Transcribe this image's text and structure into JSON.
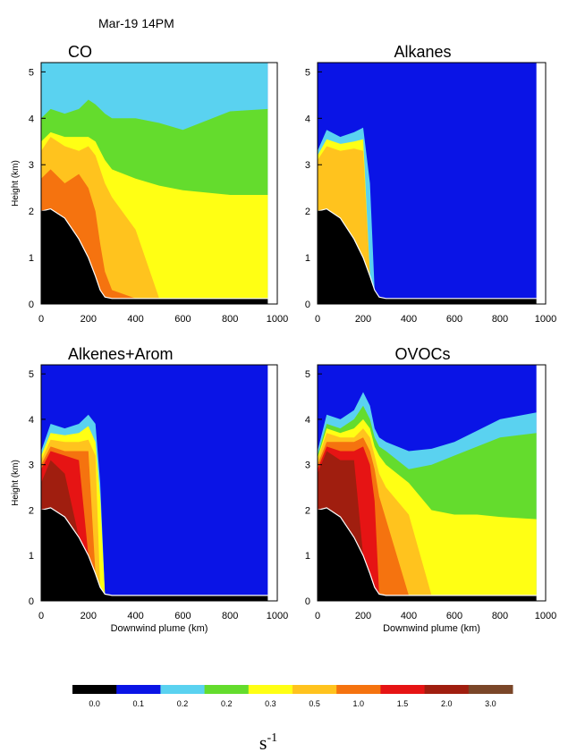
{
  "figure": {
    "time_label": "Mar-19 14PM",
    "units": "s",
    "units_exp": "-1"
  },
  "chart_data": [
    {
      "type": "area",
      "title": "CO",
      "ylabel": "Height (km)",
      "xlabel": "",
      "xlim": [
        0,
        1000
      ],
      "ylim": [
        0,
        5.2
      ],
      "x_ticks": [
        0,
        200,
        400,
        600,
        800,
        1000
      ],
      "y_ticks": [
        0,
        1,
        2,
        3,
        4,
        5
      ],
      "x": [
        0,
        40,
        100,
        160,
        200,
        230,
        250,
        270,
        300,
        400,
        500,
        600,
        700,
        800,
        960
      ],
      "terrain": [
        2.0,
        2.05,
        1.85,
        1.4,
        1.0,
        0.6,
        0.3,
        0.15,
        0.12,
        0.12,
        0.12,
        0.12,
        0.12,
        0.12,
        0.12
      ],
      "series": [
        {
          "level": "0.1",
          "top": [
            5.2,
            5.2,
            5.2,
            5.2,
            5.2,
            5.2,
            5.2,
            5.2,
            5.2,
            5.2,
            5.2,
            5.2,
            5.2,
            5.2,
            5.2
          ]
        },
        {
          "level": "0.2",
          "top": [
            5.2,
            5.2,
            5.2,
            5.2,
            5.2,
            5.2,
            5.2,
            5.2,
            5.2,
            5.2,
            5.2,
            5.2,
            5.2,
            5.2,
            5.2
          ]
        },
        {
          "level": "0.2",
          "top": [
            4.0,
            4.2,
            4.1,
            4.2,
            4.4,
            4.3,
            4.2,
            4.1,
            4.0,
            4.0,
            3.9,
            3.75,
            3.95,
            4.15,
            4.2
          ]
        },
        {
          "level": "0.3",
          "top": [
            3.5,
            3.7,
            3.6,
            3.6,
            3.6,
            3.5,
            3.3,
            3.1,
            2.9,
            2.7,
            2.55,
            2.45,
            2.4,
            2.35,
            2.35
          ]
        },
        {
          "level": "0.5",
          "top": [
            3.3,
            3.6,
            3.4,
            3.3,
            3.4,
            3.2,
            2.9,
            2.6,
            2.3,
            1.6,
            0.0,
            0.0,
            0.0,
            0.0,
            0.0
          ]
        },
        {
          "level": "1.0",
          "top": [
            2.7,
            2.9,
            2.6,
            2.8,
            2.5,
            2.0,
            1.3,
            0.7,
            0.3,
            0.0,
            0.0,
            0.0,
            0.0,
            0.0,
            0.0
          ]
        }
      ]
    },
    {
      "type": "area",
      "title": "Alkanes",
      "ylabel": "",
      "xlabel": "",
      "xlim": [
        0,
        1000
      ],
      "ylim": [
        0,
        5.2
      ],
      "x_ticks": [
        0,
        200,
        400,
        600,
        800,
        1000
      ],
      "y_ticks": [
        0,
        1,
        2,
        3,
        4,
        5
      ],
      "x": [
        0,
        40,
        100,
        160,
        200,
        230,
        250,
        270,
        300,
        400,
        500,
        600,
        700,
        800,
        960
      ],
      "terrain": [
        2.0,
        2.05,
        1.85,
        1.4,
        1.0,
        0.6,
        0.3,
        0.15,
        0.12,
        0.12,
        0.12,
        0.12,
        0.12,
        0.12,
        0.12
      ],
      "series": [
        {
          "level": "0.1",
          "top": [
            5.2,
            5.2,
            5.2,
            5.2,
            5.2,
            5.2,
            5.2,
            5.2,
            5.2,
            5.2,
            5.2,
            5.2,
            5.2,
            5.2,
            5.2
          ]
        },
        {
          "level": "0.2",
          "top": [
            3.3,
            3.75,
            3.6,
            3.7,
            3.8,
            2.6,
            0.0,
            0.0,
            0.0,
            0.0,
            0.0,
            0.0,
            0.0,
            0.0,
            0.0
          ]
        },
        {
          "level": "0.3",
          "top": [
            3.2,
            3.55,
            3.45,
            3.5,
            3.55,
            0.0,
            0.0,
            0.0,
            0.0,
            0.0,
            0.0,
            0.0,
            0.0,
            0.0,
            0.0
          ]
        },
        {
          "level": "0.5",
          "top": [
            3.1,
            3.4,
            3.3,
            3.35,
            3.3,
            0.0,
            0.0,
            0.0,
            0.0,
            0.0,
            0.0,
            0.0,
            0.0,
            0.0,
            0.0
          ]
        }
      ]
    },
    {
      "type": "area",
      "title": "Alkenes+Arom",
      "ylabel": "Height (km)",
      "xlabel": "Downwind plume (km)",
      "xlim": [
        0,
        1000
      ],
      "ylim": [
        0,
        5.2
      ],
      "x_ticks": [
        0,
        200,
        400,
        600,
        800,
        1000
      ],
      "y_ticks": [
        0,
        1,
        2,
        3,
        4,
        5
      ],
      "x": [
        0,
        40,
        100,
        160,
        200,
        230,
        250,
        270,
        300,
        400,
        500,
        600,
        700,
        800,
        960
      ],
      "terrain": [
        2.0,
        2.05,
        1.85,
        1.4,
        1.0,
        0.6,
        0.3,
        0.15,
        0.12,
        0.12,
        0.12,
        0.12,
        0.12,
        0.12,
        0.12
      ],
      "series": [
        {
          "level": "0.1",
          "top": [
            5.2,
            5.2,
            5.2,
            5.2,
            5.2,
            5.2,
            5.2,
            5.2,
            5.2,
            5.2,
            5.2,
            5.2,
            5.2,
            5.2,
            5.2
          ]
        },
        {
          "level": "0.2",
          "top": [
            3.3,
            3.9,
            3.8,
            3.9,
            4.1,
            3.9,
            2.6,
            0.0,
            0.0,
            0.0,
            0.0,
            0.0,
            0.0,
            0.0,
            0.0
          ]
        },
        {
          "level": "0.3",
          "top": [
            3.2,
            3.7,
            3.65,
            3.7,
            3.85,
            3.5,
            2.3,
            0.0,
            0.0,
            0.0,
            0.0,
            0.0,
            0.0,
            0.0,
            0.0
          ]
        },
        {
          "level": "0.5",
          "top": [
            3.1,
            3.55,
            3.5,
            3.5,
            3.55,
            3.2,
            0.0,
            0.0,
            0.0,
            0.0,
            0.0,
            0.0,
            0.0,
            0.0,
            0.0
          ]
        },
        {
          "level": "1.0",
          "top": [
            3.0,
            3.4,
            3.3,
            3.3,
            3.3,
            0.0,
            0.0,
            0.0,
            0.0,
            0.0,
            0.0,
            0.0,
            0.0,
            0.0,
            0.0
          ]
        },
        {
          "level": "1.5",
          "top": [
            2.9,
            3.3,
            3.2,
            3.1,
            0.0,
            0.0,
            0.0,
            0.0,
            0.0,
            0.0,
            0.0,
            0.0,
            0.0,
            0.0,
            0.0
          ]
        },
        {
          "level": "2.0",
          "top": [
            2.6,
            3.1,
            2.8,
            0.0,
            0.0,
            0.0,
            0.0,
            0.0,
            0.0,
            0.0,
            0.0,
            0.0,
            0.0,
            0.0,
            0.0
          ]
        }
      ]
    },
    {
      "type": "area",
      "title": "OVOCs",
      "ylabel": "",
      "xlabel": "Downwind plume (km)",
      "xlim": [
        0,
        1000
      ],
      "ylim": [
        0,
        5.2
      ],
      "x_ticks": [
        0,
        200,
        400,
        600,
        800,
        1000
      ],
      "y_ticks": [
        0,
        1,
        2,
        3,
        4,
        5
      ],
      "x": [
        0,
        40,
        100,
        160,
        200,
        230,
        250,
        270,
        300,
        400,
        500,
        600,
        700,
        800,
        960
      ],
      "terrain": [
        2.0,
        2.05,
        1.85,
        1.4,
        1.0,
        0.6,
        0.3,
        0.15,
        0.12,
        0.12,
        0.12,
        0.12,
        0.12,
        0.12,
        0.12
      ],
      "series": [
        {
          "level": "0.1",
          "top": [
            5.2,
            5.2,
            5.2,
            5.2,
            5.2,
            5.2,
            5.2,
            5.2,
            5.2,
            5.2,
            5.2,
            5.2,
            5.2,
            5.2,
            5.2
          ]
        },
        {
          "level": "0.2",
          "top": [
            3.3,
            4.1,
            4.0,
            4.2,
            4.6,
            4.3,
            3.8,
            3.6,
            3.5,
            3.3,
            3.35,
            3.5,
            3.75,
            4.0,
            4.15
          ]
        },
        {
          "level": "0.2",
          "top": [
            3.2,
            3.9,
            3.8,
            4.0,
            4.3,
            4.0,
            3.6,
            3.4,
            3.3,
            2.9,
            3.0,
            3.2,
            3.4,
            3.6,
            3.7
          ]
        },
        {
          "level": "0.3",
          "top": [
            3.15,
            3.8,
            3.7,
            3.8,
            4.0,
            3.8,
            3.4,
            3.2,
            3.0,
            2.6,
            2.0,
            1.9,
            1.9,
            1.85,
            1.8
          ]
        },
        {
          "level": "0.5",
          "top": [
            3.1,
            3.7,
            3.6,
            3.6,
            3.8,
            3.6,
            3.2,
            2.8,
            2.5,
            1.9,
            0.0,
            0.0,
            0.0,
            0.0,
            0.0
          ]
        },
        {
          "level": "1.0",
          "top": [
            3.0,
            3.5,
            3.5,
            3.5,
            3.6,
            3.3,
            2.9,
            2.3,
            1.8,
            0.0,
            0.0,
            0.0,
            0.0,
            0.0,
            0.0
          ]
        },
        {
          "level": "1.5",
          "top": [
            2.9,
            3.4,
            3.3,
            3.3,
            3.4,
            3.0,
            2.2,
            0.0,
            0.0,
            0.0,
            0.0,
            0.0,
            0.0,
            0.0,
            0.0
          ]
        },
        {
          "level": "2.0",
          "top": [
            2.8,
            3.3,
            3.1,
            3.1,
            0.0,
            0.0,
            0.0,
            0.0,
            0.0,
            0.0,
            0.0,
            0.0,
            0.0,
            0.0,
            0.0
          ]
        }
      ]
    }
  ],
  "colorbar": {
    "levels": [
      {
        "label": "0.0",
        "color": "#000000"
      },
      {
        "label": "0.1",
        "color": "#0a14e6"
      },
      {
        "label": "0.2",
        "color": "#5ad2f0"
      },
      {
        "label": "0.2",
        "color": "#64dc2d"
      },
      {
        "label": "0.3",
        "color": "#ffff14"
      },
      {
        "label": "0.5",
        "color": "#ffc31e"
      },
      {
        "label": "1.0",
        "color": "#f5730f"
      },
      {
        "label": "1.5",
        "color": "#e61414"
      },
      {
        "label": "2.0",
        "color": "#a01e0f"
      },
      {
        "label": "3.0",
        "color": "#7a4628"
      }
    ]
  }
}
